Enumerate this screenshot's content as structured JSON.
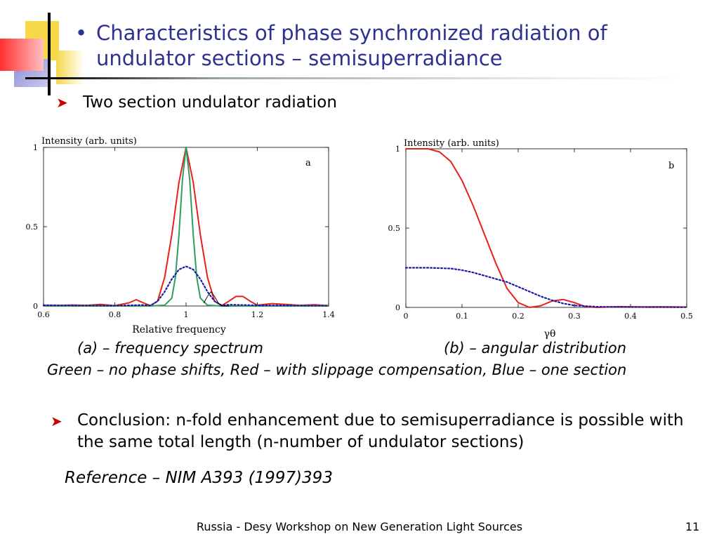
{
  "slide": {
    "bullet": "•",
    "title": "Characteristics of phase synchronized radiation of undulator sections – semisuperradiance",
    "sub_bullet": "Two section undulator radiation",
    "caption_a": "(a) – frequency spectrum",
    "caption_b": "(b) – angular distribution",
    "legend_caption": "Green – no phase shifts, Red – with slippage compensation, Blue – one section",
    "conclusion": "Conclusion: n-fold enhancement due to semisuperradiance is possible with the same total length (n-number of undulator sections)",
    "reference": "Reference – NIM A393 (1997)393",
    "footer": "Russia - Desy Workshop on New Generation Light Sources",
    "page_number": "11"
  },
  "chart_data": [
    {
      "type": "line",
      "panel_label": "a",
      "ylabel": "Intensity (arb. units)",
      "xlabel": "Relative frequency",
      "xlim": [
        0.6,
        1.4
      ],
      "ylim": [
        0,
        1
      ],
      "x_ticks": [
        "0.6",
        "0.8",
        "1",
        "1.2",
        "1.4"
      ],
      "y_ticks": [
        "0",
        "0.5",
        "1"
      ],
      "series": [
        {
          "color": "#e8201a",
          "style": "solid",
          "x": [
            0.6,
            0.64,
            0.68,
            0.72,
            0.76,
            0.8,
            0.84,
            0.86,
            0.88,
            0.9,
            0.92,
            0.94,
            0.96,
            0.98,
            1.0,
            1.02,
            1.04,
            1.06,
            1.08,
            1.1,
            1.12,
            1.14,
            1.16,
            1.18,
            1.2,
            1.24,
            1.28,
            1.32,
            1.36,
            1.4
          ],
          "y": [
            0.005,
            0.003,
            0.006,
            0.004,
            0.01,
            0.002,
            0.02,
            0.04,
            0.02,
            0.002,
            0.03,
            0.18,
            0.45,
            0.78,
            1.0,
            0.78,
            0.45,
            0.18,
            0.03,
            0.002,
            0.03,
            0.06,
            0.06,
            0.03,
            0.005,
            0.015,
            0.01,
            0.004,
            0.008,
            0.002
          ]
        },
        {
          "color": "#2e9e5e",
          "style": "solid",
          "x": [
            0.6,
            0.8,
            0.9,
            0.94,
            0.96,
            0.97,
            0.98,
            0.99,
            1.0,
            1.01,
            1.02,
            1.03,
            1.04,
            1.06,
            1.1,
            1.2,
            1.4
          ],
          "y": [
            0,
            0,
            0,
            0.005,
            0.05,
            0.18,
            0.45,
            0.8,
            1.0,
            0.8,
            0.45,
            0.18,
            0.05,
            0.005,
            0,
            0,
            0
          ]
        },
        {
          "color": "#1a1aa6",
          "style": "dotted",
          "x": [
            0.6,
            0.7,
            0.8,
            0.84,
            0.88,
            0.9,
            0.92,
            0.94,
            0.96,
            0.98,
            1.0,
            1.02,
            1.04,
            1.06,
            1.08,
            1.1,
            1.12,
            1.16,
            1.2,
            1.3,
            1.4
          ],
          "y": [
            0.005,
            0.003,
            0.002,
            0.004,
            0.006,
            0.003,
            0.03,
            0.09,
            0.17,
            0.23,
            0.25,
            0.23,
            0.17,
            0.09,
            0.03,
            0.004,
            0.008,
            0.006,
            0.004,
            0.003,
            0.002
          ]
        },
        {
          "color": "#000000",
          "style": "solid",
          "x": [
            1.05,
            1.06,
            1.07,
            1.08,
            1.09,
            1.1,
            1.12
          ],
          "y": [
            0.02,
            0.06,
            0.09,
            0.06,
            0.02,
            0.0,
            0.0
          ]
        }
      ]
    },
    {
      "type": "line",
      "panel_label": "b",
      "ylabel": "Intensity (arb. units)",
      "xlabel": "γθ",
      "xlim": [
        0,
        0.5
      ],
      "ylim": [
        0,
        1
      ],
      "x_ticks": [
        "0",
        "0.1",
        "0.2",
        "0.3",
        "0.4",
        "0.5"
      ],
      "y_ticks": [
        "0",
        "0.5",
        "1"
      ],
      "series": [
        {
          "color": "#e8201a",
          "style": "solid",
          "x": [
            0,
            0.02,
            0.04,
            0.06,
            0.08,
            0.1,
            0.12,
            0.14,
            0.16,
            0.18,
            0.2,
            0.22,
            0.24,
            0.26,
            0.28,
            0.3,
            0.32,
            0.34,
            0.38,
            0.42,
            0.46,
            0.5
          ],
          "y": [
            1.0,
            1.0,
            1.0,
            0.98,
            0.92,
            0.8,
            0.64,
            0.46,
            0.28,
            0.12,
            0.03,
            0.0,
            0.01,
            0.04,
            0.05,
            0.03,
            0.005,
            0.0,
            0.005,
            0.003,
            0.004,
            0.002
          ]
        },
        {
          "color": "#1a1aa6",
          "style": "dotted",
          "x": [
            0,
            0.04,
            0.08,
            0.1,
            0.12,
            0.14,
            0.16,
            0.18,
            0.2,
            0.22,
            0.24,
            0.26,
            0.28,
            0.3,
            0.34,
            0.4,
            0.5
          ],
          "y": [
            0.25,
            0.25,
            0.245,
            0.235,
            0.22,
            0.2,
            0.18,
            0.16,
            0.13,
            0.1,
            0.07,
            0.045,
            0.025,
            0.012,
            0.004,
            0.002,
            0.001
          ]
        }
      ]
    }
  ]
}
